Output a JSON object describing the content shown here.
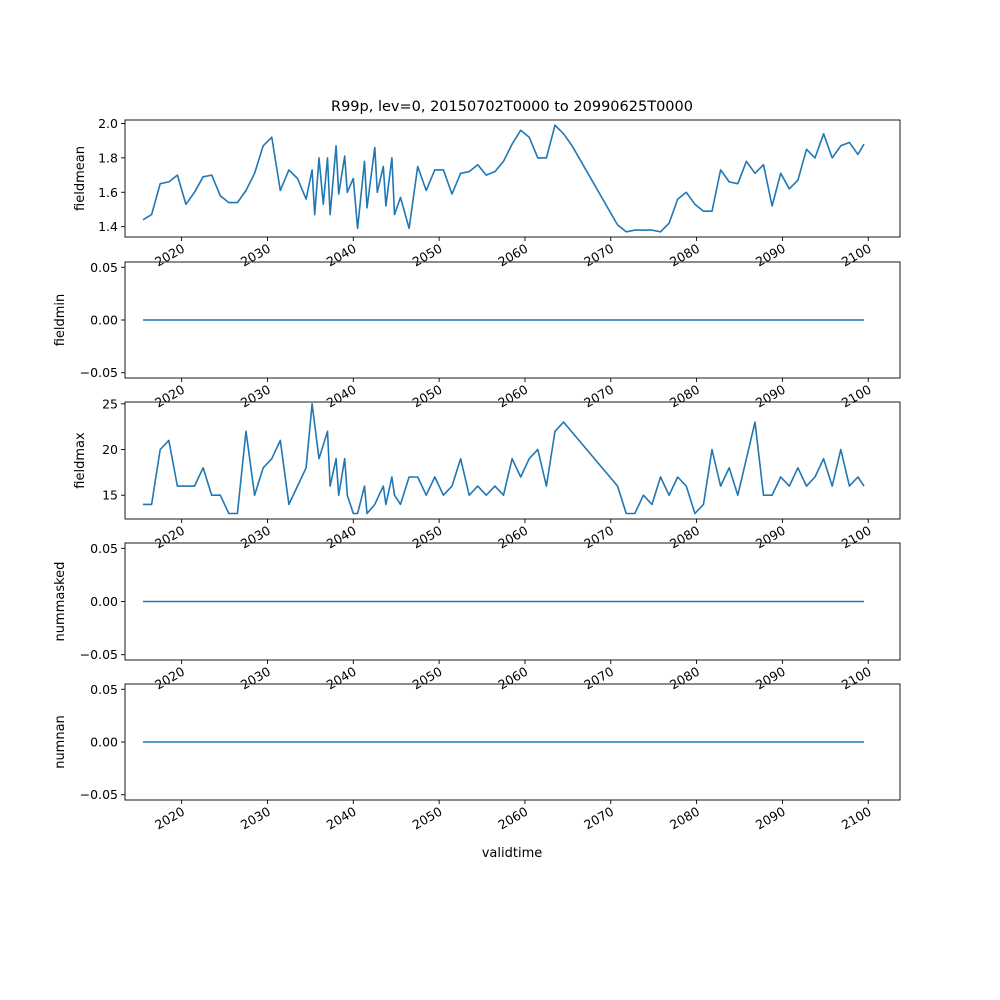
{
  "chart_data": {
    "type": "line",
    "title": "R99p, lev=0, 20150702T0000 to 20990625T0000",
    "xlabel": "validtime",
    "x_ticks": [
      2020,
      2030,
      2040,
      2050,
      2060,
      2070,
      2080,
      2090,
      2100
    ],
    "x_tick_labels": [
      "2020",
      "2030",
      "2040",
      "2050",
      "2060",
      "2070",
      "2080",
      "2090",
      "2100"
    ],
    "x_range": [
      2013.4,
      2103.7
    ],
    "series_color": "#1f77b4",
    "panels": [
      {
        "name": "fieldmean",
        "ylabel": "fieldmean",
        "ylim": [
          1.34,
          2.02
        ],
        "yticks": [
          1.4,
          1.6,
          1.8,
          2.0
        ],
        "ytick_labels": [
          "1.4",
          "1.6",
          "1.8",
          "2.0"
        ],
        "x": [
          2015.5,
          2016.5,
          2017.5,
          2018.5,
          2019.5,
          2020.5,
          2021.5,
          2022.5,
          2023.5,
          2024.5,
          2025.5,
          2026.5,
          2027.5,
          2028.5,
          2029.5,
          2030.5,
          2031.5,
          2032.5,
          2033.5,
          2034.5,
          2035.2,
          2035.5,
          2036.0,
          2036.5,
          2037.0,
          2037.3,
          2038.0,
          2038.3,
          2039.0,
          2039.3,
          2040.0,
          2040.5,
          2041.3,
          2041.6,
          2042.5,
          2042.8,
          2043.5,
          2043.8,
          2044.5,
          2044.8,
          2045.5,
          2046.5,
          2047.5,
          2048.5,
          2049.5,
          2050.5,
          2051.5,
          2052.5,
          2053.5,
          2054.5,
          2055.5,
          2056.5,
          2057.5,
          2058.5,
          2059.5,
          2060.5,
          2061.5,
          2062.5,
          2063.5,
          2064.5,
          2065.5,
          2070.8,
          2071.8,
          2072.8,
          2073.8,
          2074.8,
          2075.8,
          2076.8,
          2077.8,
          2078.8,
          2079.8,
          2080.8,
          2081.8,
          2082.8,
          2083.8,
          2084.8,
          2085.8,
          2086.8,
          2087.8,
          2088.8,
          2089.8,
          2090.8,
          2091.8,
          2092.8,
          2093.8,
          2094.8,
          2095.8,
          2096.8,
          2097.8,
          2098.8,
          2099.5
        ],
        "y": [
          1.44,
          1.47,
          1.65,
          1.66,
          1.7,
          1.53,
          1.6,
          1.69,
          1.7,
          1.58,
          1.54,
          1.54,
          1.61,
          1.71,
          1.87,
          1.92,
          1.61,
          1.73,
          1.68,
          1.56,
          1.73,
          1.47,
          1.8,
          1.53,
          1.8,
          1.47,
          1.87,
          1.59,
          1.81,
          1.6,
          1.68,
          1.39,
          1.78,
          1.51,
          1.86,
          1.6,
          1.75,
          1.52,
          1.8,
          1.47,
          1.57,
          1.39,
          1.75,
          1.61,
          1.73,
          1.73,
          1.59,
          1.71,
          1.72,
          1.76,
          1.7,
          1.72,
          1.78,
          1.88,
          1.96,
          1.92,
          1.8,
          1.8,
          1.99,
          1.94,
          1.87,
          1.41,
          1.37,
          1.38,
          1.38,
          1.38,
          1.37,
          1.42,
          1.56,
          1.6,
          1.53,
          1.49,
          1.49,
          1.73,
          1.66,
          1.65,
          1.78,
          1.71,
          1.76,
          1.52,
          1.71,
          1.62,
          1.67,
          1.85,
          1.8,
          1.94,
          1.8,
          1.87,
          1.89,
          1.82,
          1.88
        ]
      },
      {
        "name": "fieldmin",
        "ylabel": "fieldmin",
        "ylim": [
          -0.055,
          0.055
        ],
        "yticks": [
          -0.05,
          0.0,
          0.05
        ],
        "ytick_labels": [
          "−0.05",
          "0.00",
          "0.05"
        ],
        "x": [
          2015.5,
          2099.5
        ],
        "y": [
          0,
          0
        ]
      },
      {
        "name": "fieldmax",
        "ylabel": "fieldmax",
        "ylim": [
          12.4,
          25.2
        ],
        "yticks": [
          15,
          20,
          25
        ],
        "ytick_labels": [
          "15",
          "20",
          "25"
        ],
        "x": [
          2015.5,
          2016.5,
          2017.5,
          2018.5,
          2019.5,
          2020.5,
          2021.5,
          2022.5,
          2023.5,
          2024.5,
          2025.5,
          2026.5,
          2027.5,
          2028.5,
          2029.5,
          2030.5,
          2031.5,
          2032.5,
          2033.5,
          2034.5,
          2035.2,
          2036.0,
          2037.0,
          2037.3,
          2038.0,
          2038.3,
          2039.0,
          2039.3,
          2040.0,
          2040.5,
          2041.3,
          2041.6,
          2042.5,
          2043.0,
          2043.5,
          2043.8,
          2044.5,
          2044.8,
          2045.5,
          2046.5,
          2047.5,
          2048.5,
          2049.5,
          2050.5,
          2051.5,
          2052.5,
          2053.5,
          2054.5,
          2055.5,
          2056.5,
          2057.5,
          2058.5,
          2059.5,
          2060.5,
          2061.5,
          2062.5,
          2063.5,
          2064.5,
          2070.8,
          2071.8,
          2072.8,
          2073.8,
          2074.8,
          2075.8,
          2076.8,
          2077.8,
          2078.8,
          2079.8,
          2080.8,
          2081.8,
          2082.8,
          2083.8,
          2084.8,
          2085.8,
          2086.8,
          2087.8,
          2088.8,
          2089.8,
          2090.8,
          2091.8,
          2092.8,
          2093.8,
          2094.8,
          2095.8,
          2096.8,
          2097.8,
          2098.8,
          2099.5
        ],
        "y": [
          14,
          14,
          20,
          21,
          16,
          16,
          16,
          18,
          15,
          15,
          13,
          13,
          22,
          15,
          18,
          19,
          21,
          14,
          16,
          18,
          25,
          19,
          22,
          16,
          19,
          15,
          19,
          15,
          13,
          13,
          16,
          13,
          14,
          15,
          16,
          14,
          17,
          15,
          14,
          17,
          17,
          15,
          17,
          15,
          16,
          19,
          15,
          16,
          15,
          16,
          15,
          19,
          17,
          19,
          20,
          16,
          22,
          23,
          16,
          13,
          13,
          15,
          14,
          17,
          15,
          17,
          16,
          13,
          14,
          20,
          16,
          18,
          15,
          19,
          23,
          15,
          15,
          17,
          16,
          18,
          16,
          17,
          19,
          16,
          20,
          16,
          17,
          16
        ]
      },
      {
        "name": "nummasked",
        "ylabel": "nummasked",
        "ylim": [
          -0.055,
          0.055
        ],
        "yticks": [
          -0.05,
          0.0,
          0.05
        ],
        "ytick_labels": [
          "−0.05",
          "0.00",
          "0.05"
        ],
        "x": [
          2015.5,
          2099.5
        ],
        "y": [
          0,
          0
        ]
      },
      {
        "name": "numnan",
        "ylabel": "numnan",
        "ylim": [
          -0.055,
          0.055
        ],
        "yticks": [
          -0.05,
          0.0,
          0.05
        ],
        "ytick_labels": [
          "−0.05",
          "0.00",
          "0.05"
        ],
        "x": [
          2015.5,
          2099.5
        ],
        "y": [
          0,
          0
        ]
      }
    ]
  }
}
